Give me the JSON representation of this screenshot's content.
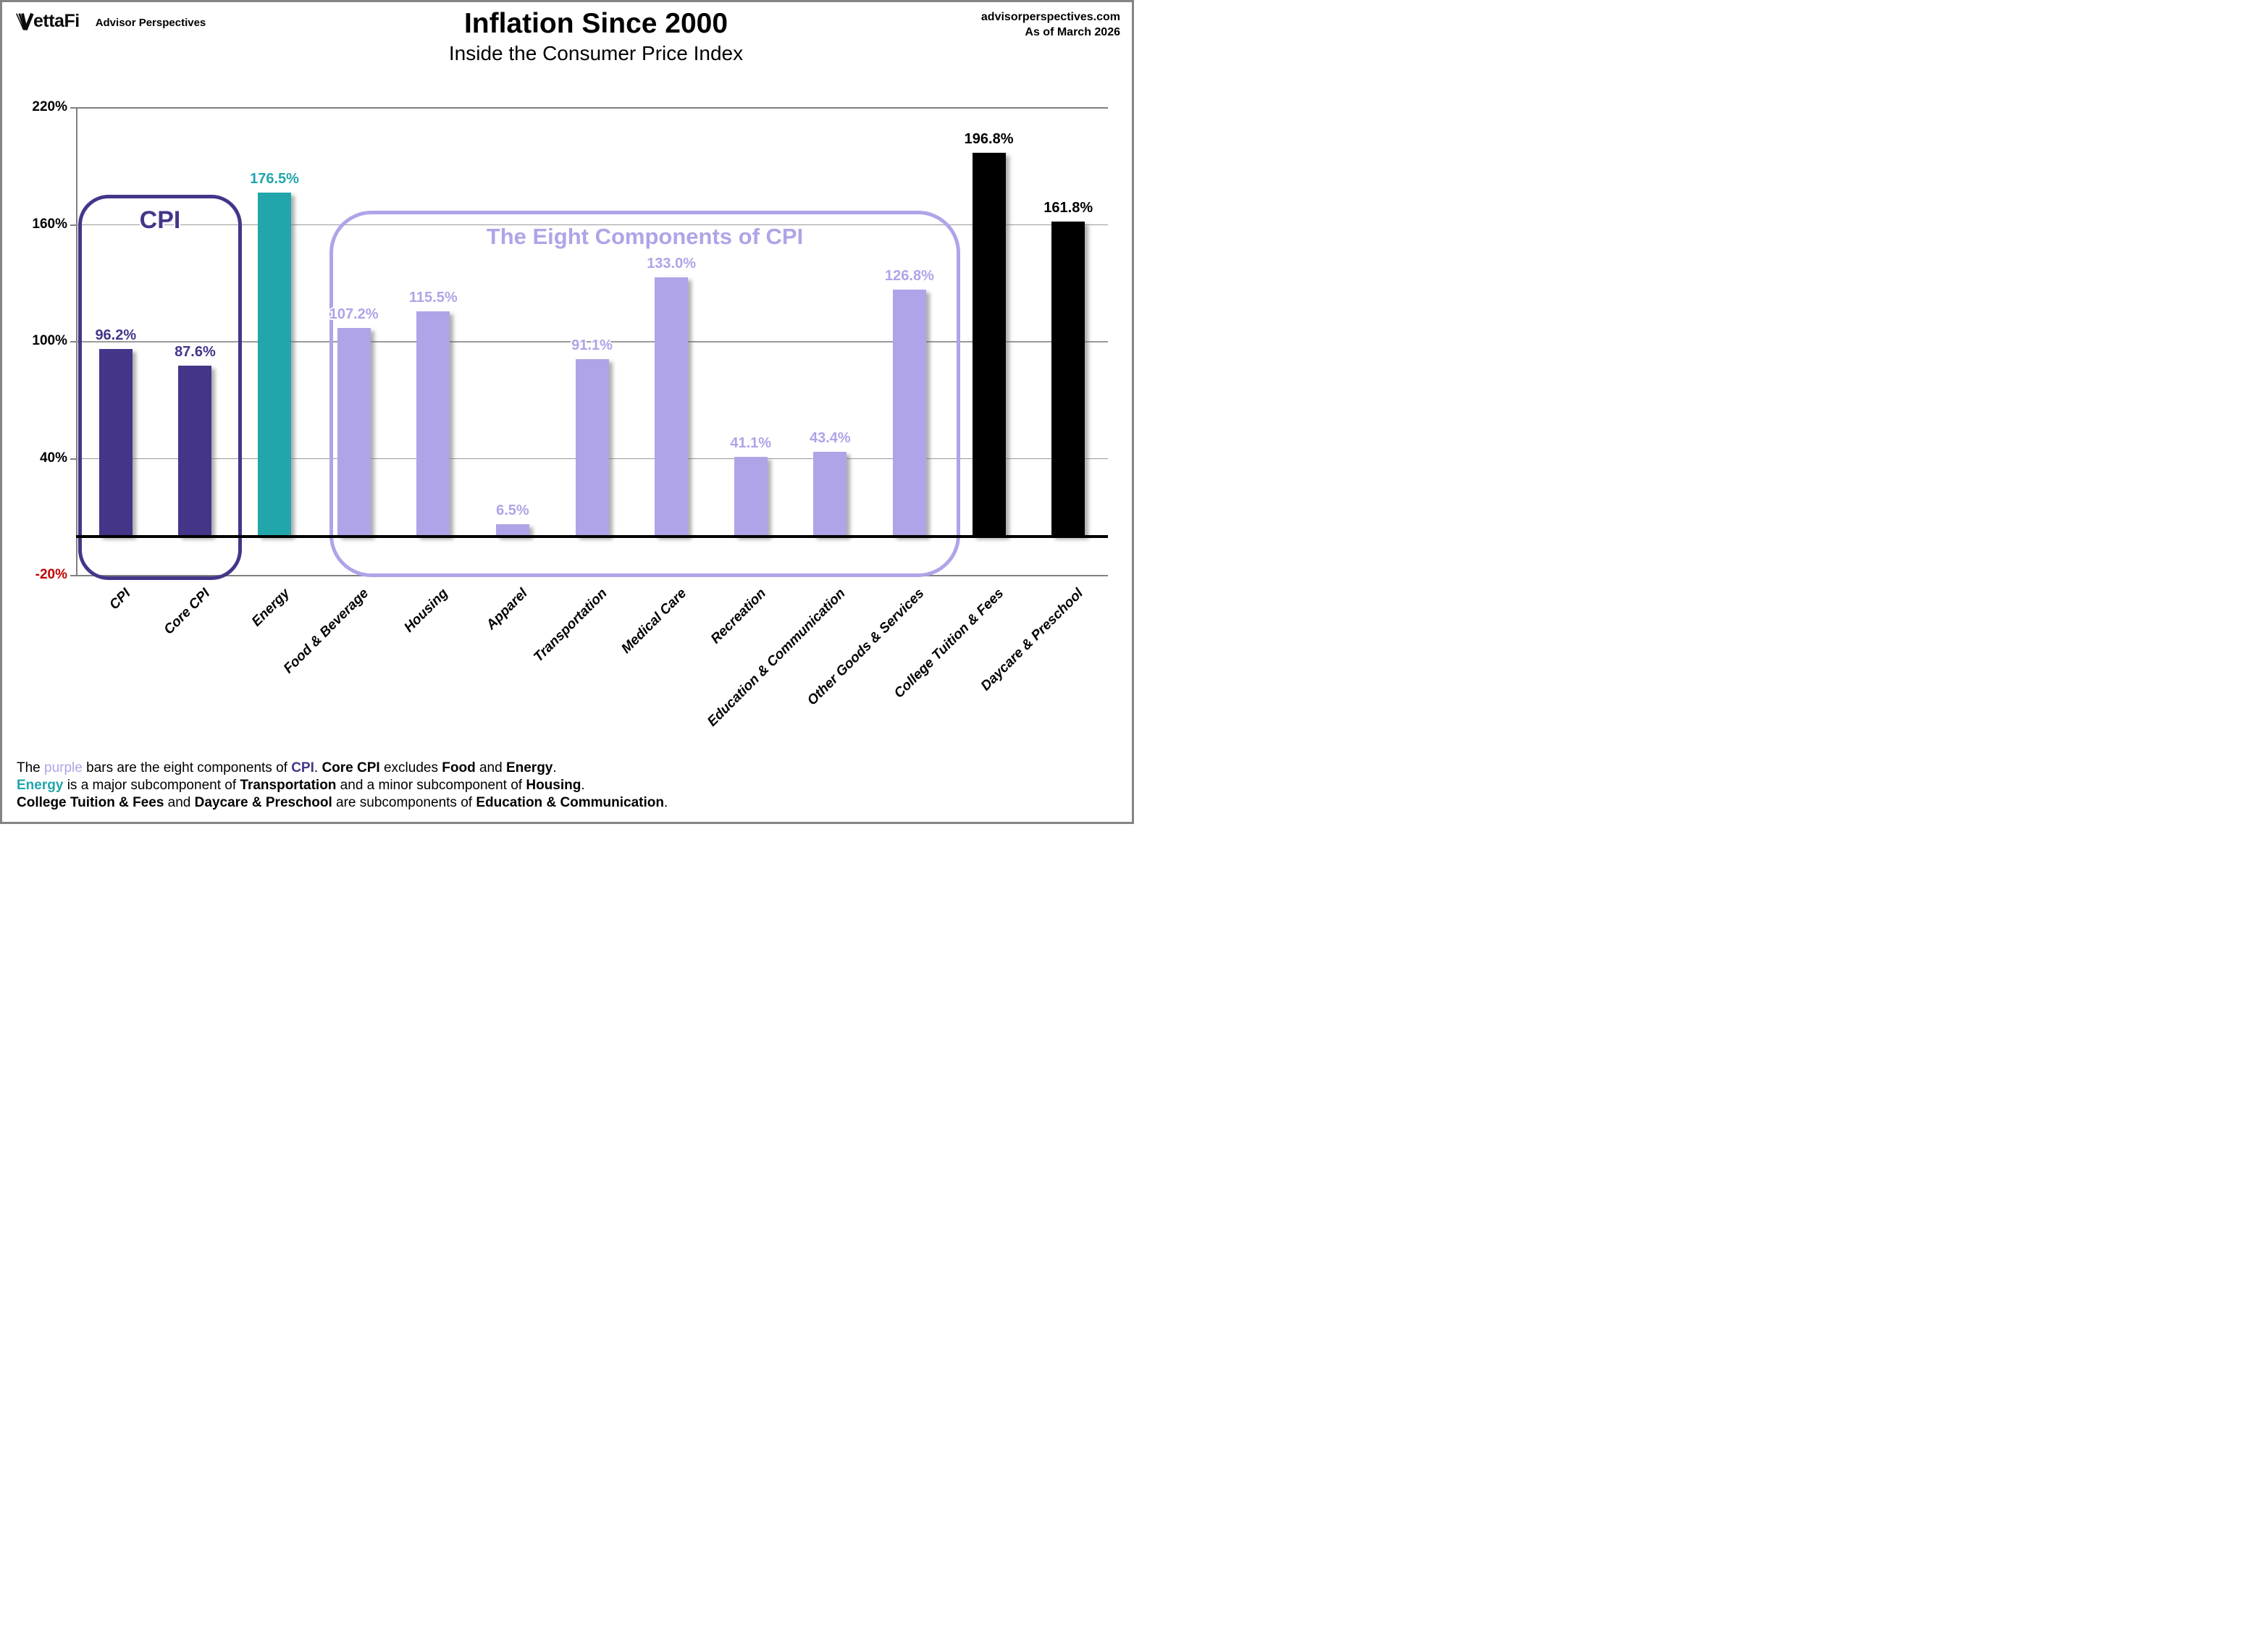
{
  "header": {
    "logo_text": "VettaFi",
    "brand": "Advisor Perspectives",
    "source_line1": "advisorperspectives.com",
    "source_line2": "As of March 2026"
  },
  "title": "Inflation Since 2000",
  "subtitle": "Inside the Consumer Price Index",
  "palette": {
    "dark_purple": "#453589",
    "teal": "#21A6AC",
    "light_purple": "#AFA4E8",
    "black": "#000000",
    "red_negative": "#C00000",
    "grid_gray": "#9a9a9a",
    "axis_gray": "#808080"
  },
  "chart_data": {
    "type": "bar",
    "categories": [
      "CPI",
      "Core CPI",
      "Energy",
      "Food & Beverage",
      "Housing",
      "Apparel",
      "Transportation",
      "Medical Care",
      "Recreation",
      "Education & Communication",
      "Other Goods & Services",
      "College Tuition & Fees",
      "Daycare & Preschool"
    ],
    "values": [
      96.2,
      87.6,
      176.5,
      107.2,
      115.5,
      6.5,
      91.1,
      133.0,
      41.1,
      43.4,
      126.8,
      196.8,
      161.8
    ],
    "value_labels": [
      "96.2%",
      "87.6%",
      "176.5%",
      "107.2%",
      "115.5%",
      "6.5%",
      "91.1%",
      "133.0%",
      "41.1%",
      "43.4%",
      "126.8%",
      "196.8%",
      "161.8%"
    ],
    "bar_groups": [
      "cpi",
      "cpi",
      "energy",
      "component",
      "component",
      "component",
      "component",
      "component",
      "component",
      "component",
      "component",
      "subcomponent_black",
      "subcomponent_black"
    ],
    "group_colors": {
      "cpi": "dark_purple",
      "energy": "teal",
      "component": "light_purple",
      "subcomponent_black": "black"
    },
    "title": "Inflation Since 2000",
    "subtitle": "Inside the Consumer Price Index",
    "xlabel": "",
    "ylabel": "",
    "ylim": [
      -20,
      220
    ],
    "yticks": [
      {
        "label": "220%",
        "value": 220
      },
      {
        "label": "160%",
        "value": 160
      },
      {
        "label": "100%",
        "value": 100
      },
      {
        "label": "40%",
        "value": 40
      },
      {
        "label": "-20%",
        "value": -20
      }
    ],
    "grid": true,
    "legend": false
  },
  "annotations": {
    "cpi_box_label": "CPI",
    "components_box_label": "The Eight Components of CPI"
  },
  "footnotes": [
    {
      "parts": [
        {
          "t": "The "
        },
        {
          "t": "purple",
          "c": "light_purple"
        },
        {
          "t": " bars are the eight components of "
        },
        {
          "t": "CPI",
          "b": true,
          "c": "dark_purple"
        },
        {
          "t": ". "
        },
        {
          "t": "Core CPI",
          "b": true
        },
        {
          "t": " excludes "
        },
        {
          "t": "Food",
          "b": true
        },
        {
          "t": " and "
        },
        {
          "t": "Energy",
          "b": true
        },
        {
          "t": "."
        }
      ]
    },
    {
      "parts": [
        {
          "t": "Energy",
          "b": true,
          "c": "teal"
        },
        {
          "t": " is a major subcomponent of "
        },
        {
          "t": "Transportation",
          "b": true
        },
        {
          "t": " and a minor subcomponent of "
        },
        {
          "t": "Housing",
          "b": true
        },
        {
          "t": "."
        }
      ]
    },
    {
      "parts": [
        {
          "t": "College Tuition & Fees",
          "b": true
        },
        {
          "t": " and "
        },
        {
          "t": "Daycare & Preschool",
          "b": true
        },
        {
          "t": " are subcomponents of "
        },
        {
          "t": "Education & Communication",
          "b": true
        },
        {
          "t": "."
        }
      ]
    }
  ]
}
